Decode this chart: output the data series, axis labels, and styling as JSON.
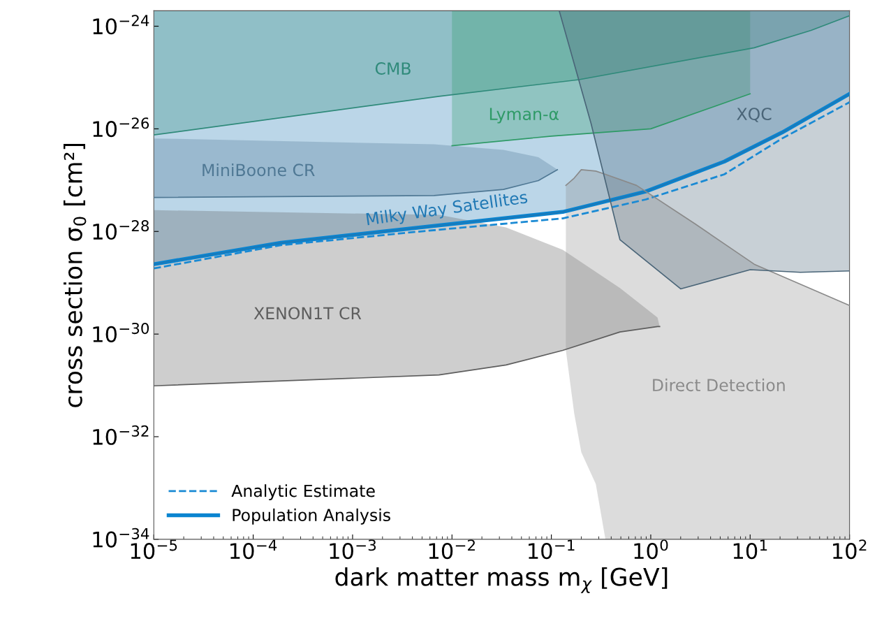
{
  "chart_data": {
    "type": "line",
    "xlabel": "dark matter mass m$_{χ}$ [GeV]",
    "ylabel": "cross section σ$_{0}$ [cm²]",
    "log": "xy",
    "grid": false,
    "legend": "bottom left",
    "xlim": [
      1e-05,
      100
    ],
    "ylim": [
      1e-34,
      2e-24
    ],
    "xticks": [
      {
        "value": 1e-05,
        "label": "10$^{−5}$"
      },
      {
        "value": 0.0001,
        "label": "10$^{−4}$"
      },
      {
        "value": 0.001,
        "label": "10$^{−3}$"
      },
      {
        "value": 0.01,
        "label": "10$^{−2}$"
      },
      {
        "value": 0.1,
        "label": "10$^{−1}$"
      },
      {
        "value": 1,
        "label": "10$^{0}$"
      },
      {
        "value": 10,
        "label": "10$^{1}$"
      },
      {
        "value": 100,
        "label": "10$^{2}$"
      }
    ],
    "yticks": [
      {
        "value": 1e-34,
        "label": "10$^{−34}$"
      },
      {
        "value": 1e-32,
        "label": "10$^{−32}$"
      },
      {
        "value": 1e-30,
        "label": "10$^{−30}$"
      },
      {
        "value": 1e-28,
        "label": "10$^{−28}$"
      },
      {
        "value": 1e-26,
        "label": "10$^{−26}$"
      },
      {
        "value": 1e-24,
        "label": "10$^{−24}$"
      }
    ],
    "series": [
      {
        "name": "Milky Way Satellites",
        "color": "#1f78b4",
        "x": [
          1e-05,
          0.00019,
          0.0048,
          0.13,
          0.89,
          5.5,
          21,
          100
        ],
        "values": [
          2.3e-29,
          6e-29,
          1.2e-28,
          2.4e-28,
          6e-28,
          2.3e-27,
          8.5e-27,
          4.8e-26
        ],
        "lower": [
          2.3e-29,
          6e-29,
          1.2e-28,
          2.4e-28,
          6e-28,
          2.3e-27,
          8.5e-27,
          4.8e-26
        ],
        "upper": [
          2e-24,
          2e-24,
          2e-24,
          2e-24,
          2e-24,
          2e-24,
          2e-24,
          2e-24
        ]
      },
      {
        "name": "CMB",
        "color": "#2f8a7a",
        "x": [
          1e-05,
          0.0074,
          0.19,
          11,
          41,
          100
        ],
        "values": [
          7.6e-27,
          4.3e-26,
          9.1e-26,
          3.8e-25,
          8.3e-25,
          1.6e-24
        ],
        "lower": [
          7.6e-27,
          4.3e-26,
          9.1e-26,
          3.8e-25,
          8.3e-25,
          1.6e-24
        ],
        "upper": [
          2e-24,
          2e-24,
          2e-24,
          2e-24,
          2e-24,
          2e-24
        ]
      },
      {
        "name": "Lyman-α",
        "color": "#2e9a66",
        "x": [
          0.01,
          0.1,
          1,
          10
        ],
        "values": [
          4.7e-27,
          7.2e-27,
          1e-26,
          4.8e-26
        ],
        "lower": [
          4.7e-27,
          7.2e-27,
          1e-26,
          4.8e-26
        ],
        "upper": [
          2e-24,
          2e-24,
          2e-24,
          2e-24
        ]
      },
      {
        "name": "MiniBoone CR",
        "color": "#4f7894",
        "x": [
          1e-05,
          0.0066,
          0.033,
          0.074,
          0.115
        ],
        "values": [
          4.6e-28,
          5e-28,
          6.6e-28,
          9.8e-28,
          1.6e-27
        ],
        "lower": [
          4.6e-28,
          5e-28,
          6.6e-28,
          9.8e-28,
          1.6e-27
        ],
        "upper": [
          6.5e-27,
          5e-27,
          3.9e-27,
          2.8e-27,
          1.6e-27
        ]
      },
      {
        "name": "XENON1T CR",
        "color": "#5e5e5e",
        "x": [
          1e-05,
          0.0074,
          0.035,
          0.13,
          0.49,
          1.17,
          1.23
        ],
        "values": [
          9.8e-32,
          1.6e-31,
          2.5e-31,
          4.8e-31,
          1.1e-30,
          1.4e-30,
          1.4e-30
        ],
        "lower": [
          9.8e-32,
          1.6e-31,
          2.5e-31,
          4.8e-31,
          1.1e-30,
          1.4e-30,
          1.4e-30
        ],
        "upper": [
          2.6e-28,
          2.1e-28,
          1.2e-28,
          4.4e-29,
          7.9e-30,
          2.1e-30,
          1.4e-30
        ]
      },
      {
        "name": "Direct Detection",
        "color": "#8a8a8a",
        "x": [
          0.14,
          0.17,
          0.2,
          0.28,
          0.35,
          0.72,
          2.8,
          11,
          100
        ],
        "values": [
          7.9e-28,
          1.1e-27,
          1.6e-27,
          1.5e-27,
          1.3e-27,
          7.9e-28,
          1.4e-28,
          2.3e-29,
          3.6e-30
        ],
        "lower": [
          4.8e-31,
          2.8e-32,
          5e-33,
          1.2e-33,
          1e-34,
          1e-34,
          1e-34,
          1e-34,
          1e-34
        ],
        "upper": [
          7.9e-28,
          1.1e-27,
          1.6e-27,
          1.5e-27,
          1.3e-27,
          7.9e-28,
          1.4e-28,
          2.3e-29,
          3.6e-30
        ]
      },
      {
        "name": "XQC",
        "color": "#4a6578",
        "x": [
          0.12,
          0.25,
          0.49,
          2.0,
          10,
          32,
          100
        ],
        "values": [
          2e-24,
          1.3e-26,
          6.9e-29,
          7.6e-30,
          1.8e-29,
          1.6e-29,
          1.7e-29
        ],
        "lower": [
          2e-24,
          1.3e-26,
          6.9e-29,
          7.6e-30,
          1.8e-29,
          1.6e-29,
          1.7e-29
        ],
        "upper": [
          2e-24,
          2e-24,
          2e-24,
          2e-24,
          2e-24,
          2e-24,
          2e-24
        ]
      },
      {
        "name": "Analytic Estimate",
        "color": "#1a8ad4",
        "line_style": "dashed",
        "x": [
          1e-05,
          0.00019,
          0.0048,
          0.13,
          0.89,
          5.5,
          21,
          100
        ],
        "values": [
          1.9e-29,
          5.4e-29,
          1e-28,
          1.8e-28,
          4.2e-28,
          1.3e-27,
          6.5e-27,
          3.3e-26
        ]
      },
      {
        "name": "Population Analysis",
        "color": "#0a84d0",
        "line_style": "solid",
        "x": [
          1e-05,
          0.00019,
          0.0048,
          0.13,
          0.89,
          5.5,
          21,
          100
        ],
        "values": [
          2.3e-29,
          6e-29,
          1.2e-28,
          2.4e-28,
          6e-28,
          2.3e-27,
          8.5e-27,
          4.8e-26
        ]
      }
    ]
  }
}
